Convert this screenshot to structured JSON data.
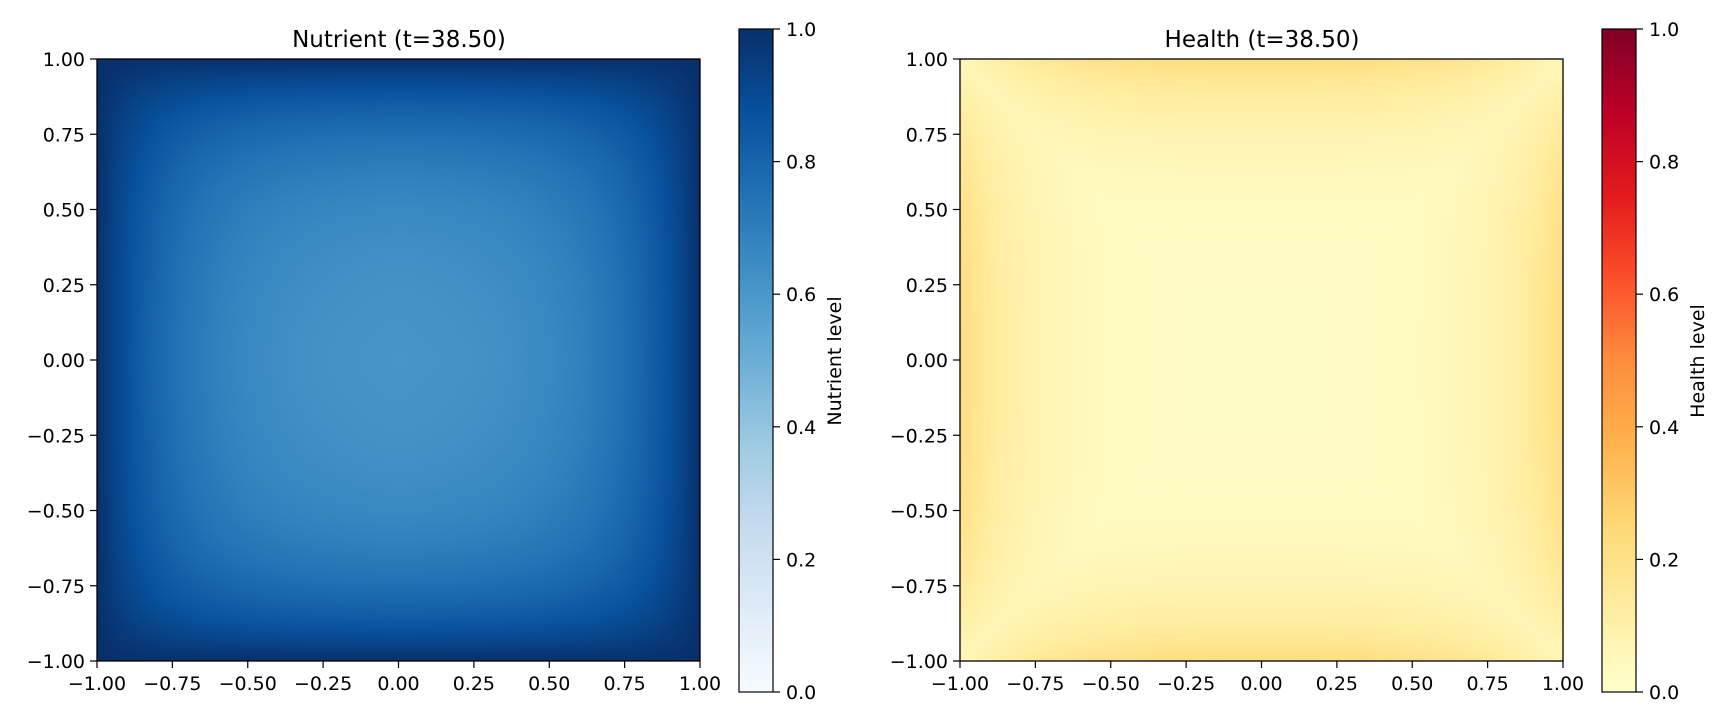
{
  "chart_data": [
    {
      "type": "heatmap",
      "title": "Nutrient (t=38.50)",
      "colormap": "Blues",
      "xlim": [
        -1.0,
        1.0
      ],
      "ylim": [
        -1.0,
        1.0
      ],
      "xticks": [
        "−1.00",
        "−0.75",
        "−0.50",
        "−0.25",
        "0.00",
        "0.25",
        "0.50",
        "0.75",
        "1.00"
      ],
      "yticks": [
        "1.00",
        "0.75",
        "0.50",
        "0.25",
        "0.00",
        "−0.25",
        "−0.50",
        "−0.75",
        "−1.00"
      ],
      "field": {
        "description_values": "nutrient level over the square domain",
        "center_value": 0.53,
        "edge_value": 0.88,
        "corner_value": 1.0
      },
      "colorbar": {
        "label": "Nutrient level",
        "range": [
          0.0,
          1.0
        ],
        "ticks": [
          "0.0",
          "0.2",
          "0.4",
          "0.6",
          "0.8",
          "1.0"
        ]
      }
    },
    {
      "type": "heatmap",
      "title": "Health (t=38.50)",
      "colormap": "YlOrRd",
      "xlim": [
        -1.0,
        1.0
      ],
      "ylim": [
        -1.0,
        1.0
      ],
      "xticks": [
        "−1.00",
        "−0.75",
        "−0.50",
        "−0.25",
        "0.00",
        "0.25",
        "0.50",
        "0.75",
        "1.00"
      ],
      "yticks": [
        "1.00",
        "0.75",
        "0.50",
        "0.25",
        "0.00",
        "−0.25",
        "−0.50",
        "−0.75",
        "−1.00"
      ],
      "field": {
        "center_value": 0.02,
        "edge_value": 0.22,
        "corner_value": 0.06
      },
      "colorbar": {
        "label": "Health level",
        "range": [
          0.0,
          1.0
        ],
        "ticks": [
          "0.0",
          "0.2",
          "0.4",
          "0.6",
          "0.8",
          "1.0"
        ]
      }
    }
  ],
  "colors": {
    "blues": [
      "#f7fbff",
      "#deebf7",
      "#c6dbef",
      "#9ecae1",
      "#6baed6",
      "#4292c6",
      "#2171b5",
      "#08519c",
      "#08306b"
    ],
    "ylorrd": [
      "#ffffcc",
      "#ffeda0",
      "#fed976",
      "#feb24c",
      "#fd8d3c",
      "#fc4e2a",
      "#e31a1c",
      "#bd0026",
      "#800026"
    ]
  }
}
